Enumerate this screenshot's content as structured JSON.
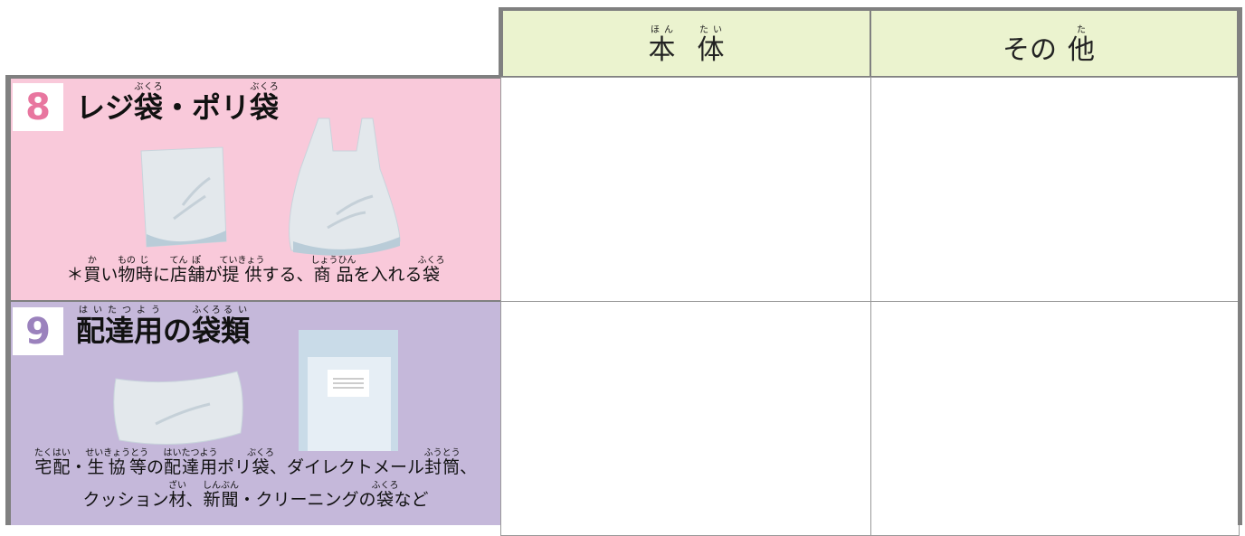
{
  "header": {
    "columns": [
      [
        {
          "text": "本",
          "ruby": "ほん"
        },
        {
          "text": "体",
          "ruby": "たい"
        }
      ],
      [
        {
          "text": "その"
        },
        {
          "text": "他",
          "ruby": "た"
        }
      ]
    ]
  },
  "rows": [
    {
      "number": "8",
      "title": [
        {
          "text": "レジ"
        },
        {
          "text": "袋",
          "ruby": "ぶくろ"
        },
        {
          "text": "・ポリ"
        },
        {
          "text": "袋",
          "ruby": "ぶくろ"
        }
      ],
      "note": [
        [
          {
            "text": "＊"
          },
          {
            "text": "買",
            "ruby": "か"
          },
          {
            "text": "い"
          },
          {
            "text": "物",
            "ruby": "もの"
          },
          {
            "text": "時",
            "ruby": "じ"
          },
          {
            "text": "に"
          },
          {
            "text": "店",
            "ruby": "てん"
          },
          {
            "text": "舗",
            "ruby": "ぽ"
          },
          {
            "text": "が"
          },
          {
            "text": "提供",
            "ruby": "ていきょう"
          },
          {
            "text": "する、"
          },
          {
            "text": "商品",
            "ruby": "しょうひん"
          },
          {
            "text": "を入れる"
          },
          {
            "text": "袋",
            "ruby": "ふくろ"
          }
        ]
      ]
    },
    {
      "number": "9",
      "title": [
        {
          "text": "配",
          "ruby": "はい"
        },
        {
          "text": "達",
          "ruby": "たつ"
        },
        {
          "text": "用",
          "ruby": "よう"
        },
        {
          "text": "の"
        },
        {
          "text": "袋",
          "ruby": "ふくろ"
        },
        {
          "text": "類",
          "ruby": "るい"
        }
      ],
      "note": [
        [
          {
            "text": "宅配",
            "ruby": "たくはい"
          },
          {
            "text": "・"
          },
          {
            "text": "生協等",
            "ruby": "せいきょうとう"
          },
          {
            "text": "の"
          },
          {
            "text": "配達用",
            "ruby": "はいたつよう"
          },
          {
            "text": "ポリ"
          },
          {
            "text": "袋",
            "ruby": "ぶくろ"
          },
          {
            "text": "、ダイレクトメール"
          },
          {
            "text": "封筒",
            "ruby": "ふうとう"
          },
          {
            "text": "、"
          }
        ],
        [
          {
            "text": "クッション"
          },
          {
            "text": "材",
            "ruby": "ざい"
          },
          {
            "text": "、"
          },
          {
            "text": "新聞",
            "ruby": "しんぶん"
          },
          {
            "text": "・クリーニングの"
          },
          {
            "text": "袋",
            "ruby": "ふくろ"
          },
          {
            "text": "など"
          }
        ]
      ]
    }
  ]
}
